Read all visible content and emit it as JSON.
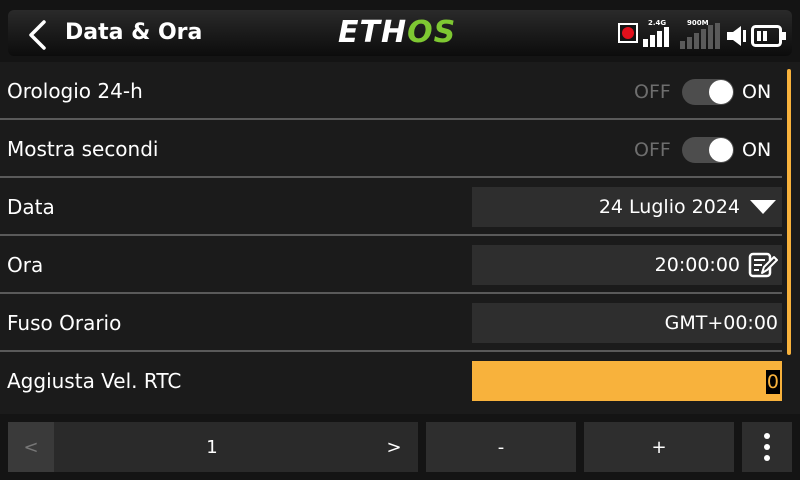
{
  "header": {
    "title": "Data & Ora",
    "logo_left": "ETH",
    "logo_right": "OS",
    "signal_1_label": "2.4G",
    "signal_2_label": "900M",
    "accent_logo": "#7ec832"
  },
  "rows": {
    "clock24": {
      "label": "Orologio 24-h",
      "off": "OFF",
      "on": "ON",
      "state": "ON"
    },
    "seconds": {
      "label": "Mostra secondi",
      "off": "OFF",
      "on": "ON",
      "state": "ON"
    },
    "date": {
      "label": "Data",
      "value": "24 Luglio 2024"
    },
    "time": {
      "label": "Ora",
      "value": "20:00:00"
    },
    "timezone": {
      "label": "Fuso Orario",
      "value": "GMT+00:00"
    },
    "rtc": {
      "label": "Aggiusta Vel. RTC",
      "value": "0"
    }
  },
  "footer": {
    "prev": "<",
    "page": "1",
    "next": ">",
    "minus": "-",
    "plus": "+"
  },
  "colors": {
    "accent": "#f8b23c",
    "record": "#e0101c"
  }
}
